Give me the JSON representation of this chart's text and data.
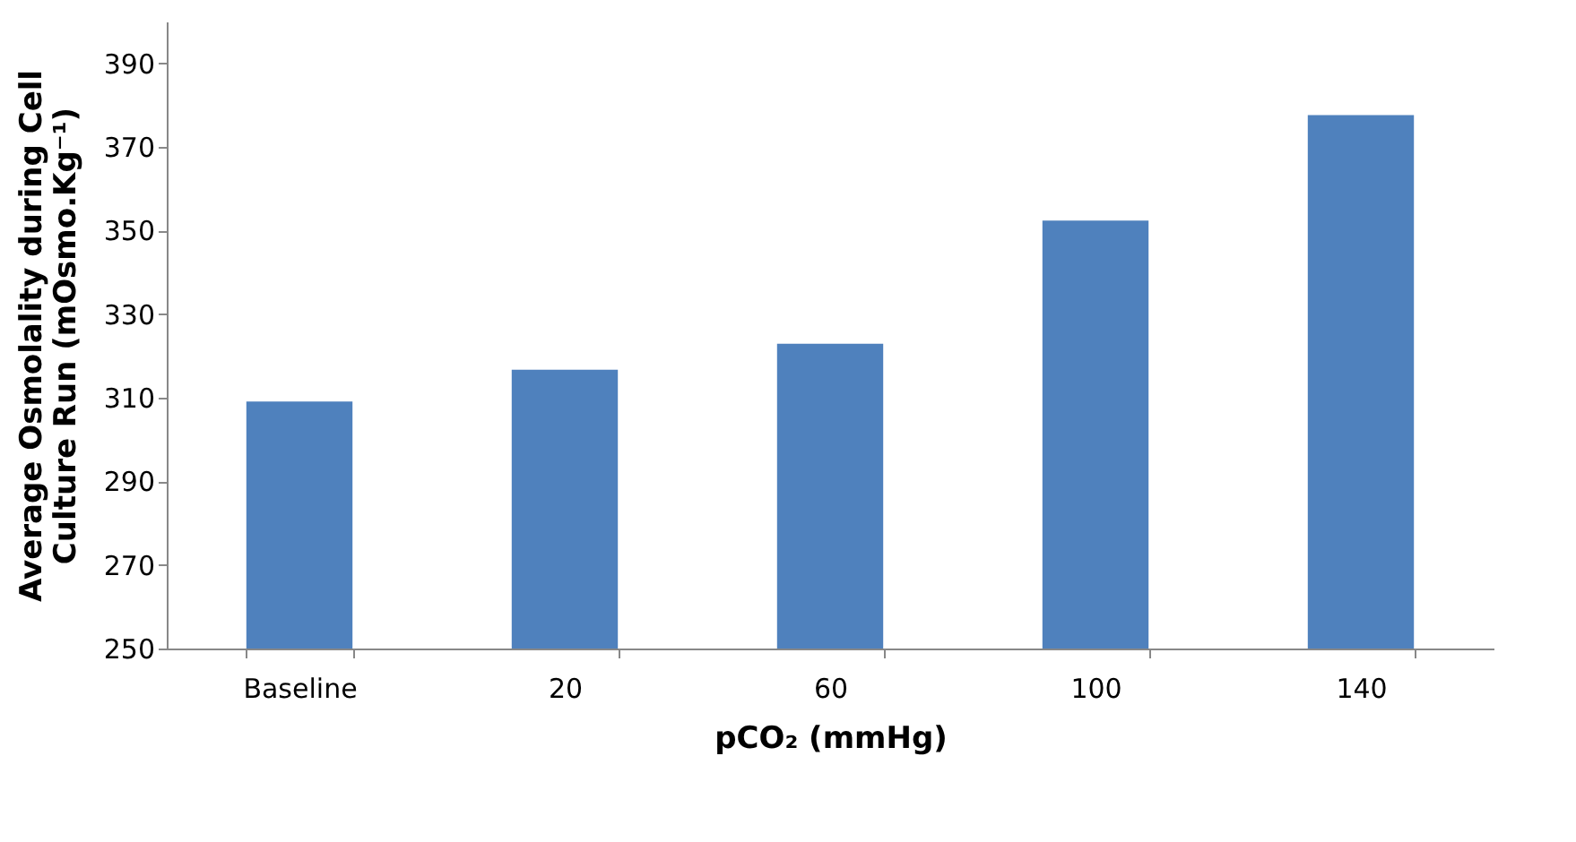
{
  "chart_data": {
    "type": "bar",
    "xlabel": "pCO₂ (mmHg)",
    "ylabel": "Average Osmolality during Cell Culture Run (mOsmo.Kg⁻¹)",
    "categories": [
      "Baseline",
      "20",
      "60",
      "100",
      "140"
    ],
    "series": [
      {
        "color": "#4f81bd",
        "values": [
          309.1,
          316.7,
          322.9,
          352.4,
          377.6
        ]
      }
    ],
    "ylim": [
      250,
      400
    ],
    "yticks": [
      250,
      270,
      290,
      310,
      330,
      350,
      370,
      390
    ],
    "grid": false,
    "legend": false
  }
}
